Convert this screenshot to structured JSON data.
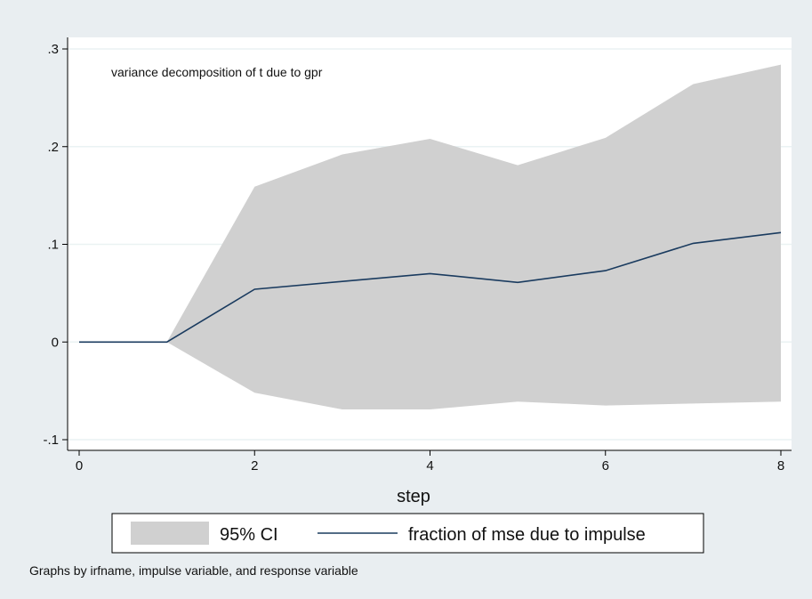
{
  "chart_data": {
    "type": "area",
    "subtitle": "variance decomposition of t due to gpr",
    "xlabel": "step",
    "ylabel": "",
    "note": "Graphs by irfname, impulse variable, and response variable",
    "x": [
      0,
      1,
      2,
      3,
      4,
      5,
      6,
      7,
      8
    ],
    "xlim": [
      0,
      8
    ],
    "ylim": [
      -0.1,
      0.3
    ],
    "x_ticks": [
      0,
      2,
      4,
      6,
      8
    ],
    "x_tick_labels": [
      "0",
      "2",
      "4",
      "6",
      "8"
    ],
    "y_ticks": [
      -0.1,
      0,
      0.1,
      0.2,
      0.3
    ],
    "y_tick_labels": [
      "-.1",
      "0",
      ".1",
      ".2",
      ".3"
    ],
    "grid": true,
    "legend_position": "bottom",
    "series": [
      {
        "name": "95% CI",
        "kind": "band",
        "lower": [
          0,
          0,
          -0.052,
          -0.069,
          -0.069,
          -0.061,
          -0.065,
          -0.063,
          -0.061
        ],
        "upper": [
          0,
          0,
          0.159,
          0.192,
          0.208,
          0.181,
          0.209,
          0.264,
          0.284
        ],
        "color": "#d0d0d0"
      },
      {
        "name": "fraction of mse due to impulse",
        "kind": "line",
        "values": [
          0,
          0,
          0.054,
          0.062,
          0.07,
          0.061,
          0.073,
          0.101,
          0.112
        ],
        "color": "#1a3b5f"
      }
    ],
    "colors": {
      "background": "#e9eef1",
      "plot_background": "#ffffff",
      "grid": "#eaf2f3",
      "axis": "#000000"
    }
  }
}
